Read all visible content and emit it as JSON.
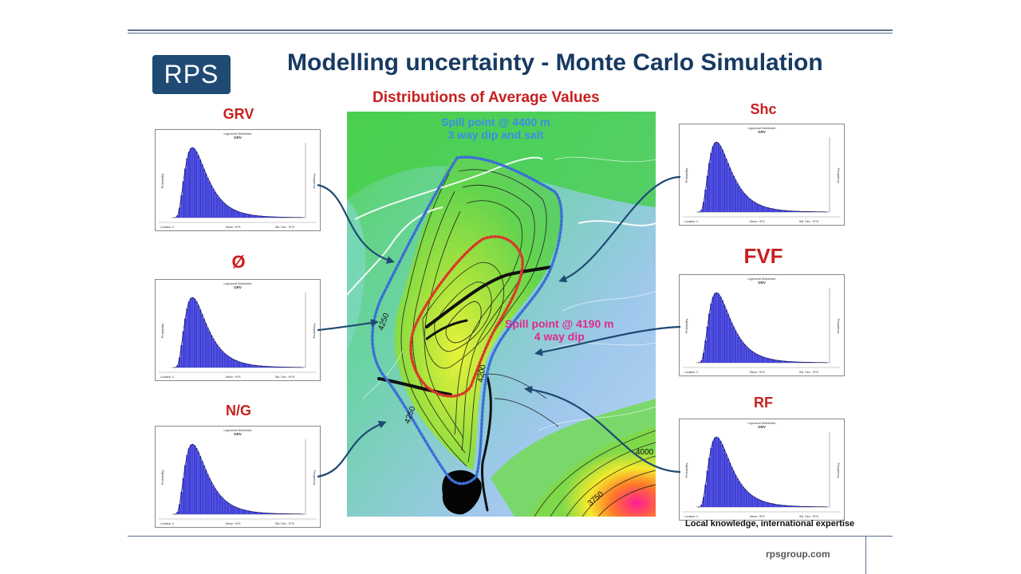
{
  "slide": {
    "logo": "RPS",
    "title": "Modelling uncertainty - Monte Carlo Simulation",
    "subtitle": "Distributions of Average Values",
    "tagline": "Local knowledge, international expertise",
    "url": "rpsgroup.com"
  },
  "parameters": {
    "left": [
      "GRV",
      "Ø",
      "N/G"
    ],
    "right": [
      "Shc",
      "FVF",
      "RF"
    ]
  },
  "histogram": {
    "title": "GRV",
    "type_label": "Lognormal Distribution",
    "y_left": "Probability",
    "y_right": "Frequency",
    "footer_left": "Location: 0",
    "footer_mid": "Mean: +E*6",
    "footer_right": "Std. Dev.: +E*6",
    "color": "#3c3cd8"
  },
  "map": {
    "note_top_line1": "Spill point @ 4400 m",
    "note_top_line2": "3 way dip and salt",
    "note_mid_line1": "Spill point @ 4190 m",
    "note_mid_line2": "4 way dip",
    "contour_labels": [
      "4250",
      "4200",
      "4250",
      "4000",
      "3750",
      "4250"
    ],
    "outline_outer_color": "#3b6fd6",
    "outline_inner_color": "#d83a2a"
  }
}
